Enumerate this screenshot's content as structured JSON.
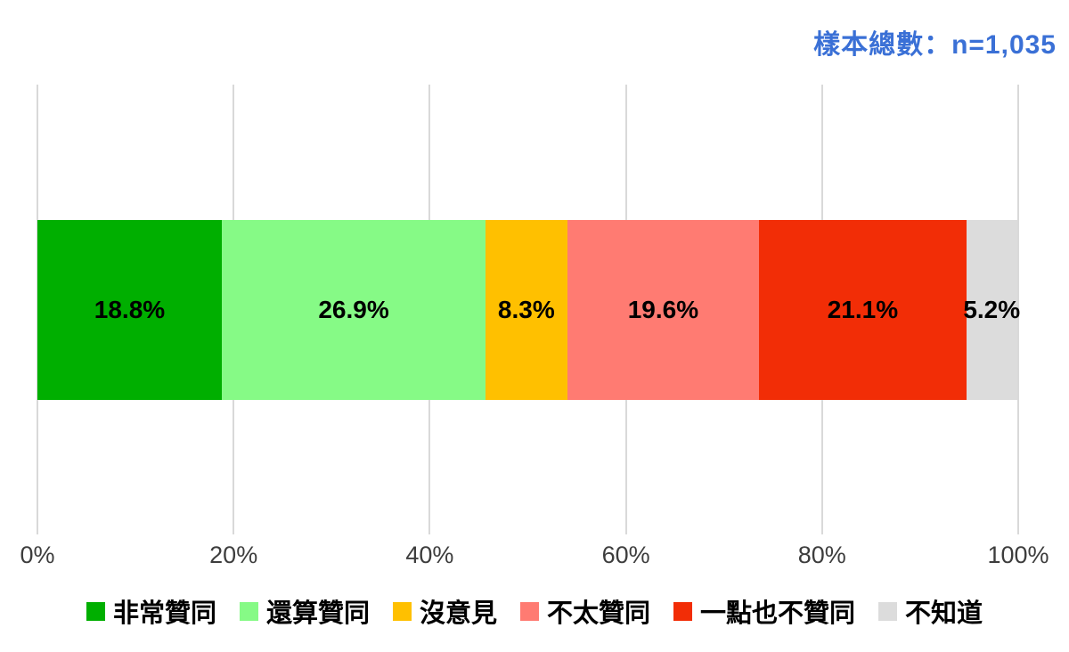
{
  "header": {
    "sample_total": "樣本總數：n=1,035",
    "color": "#3A70D6"
  },
  "chart_data": {
    "type": "bar",
    "variant": "horizontal-stacked-100pct",
    "title": "樣本總數：n=1,035",
    "categories": [
      "非常贊同",
      "還算贊同",
      "沒意見",
      "不太贊同",
      "一點也不贊同",
      "不知道"
    ],
    "values": [
      18.8,
      26.9,
      8.3,
      19.6,
      21.1,
      5.2
    ],
    "labels": [
      "18.8%",
      "26.9%",
      "8.3%",
      "19.6%",
      "21.1%",
      "5.2%"
    ],
    "colors": [
      "#00AF00",
      "#86FA86",
      "#FFC000",
      "#FF7B72",
      "#F22D06",
      "#DCDCDC"
    ],
    "xlabel": "",
    "ylabel": "",
    "x_axis": {
      "ticks": [
        "0%",
        "20%",
        "40%",
        "60%",
        "80%",
        "100%"
      ],
      "tick_values": [
        0,
        20,
        40,
        60,
        80,
        100
      ],
      "range": [
        0,
        100
      ]
    },
    "grid": "vertical",
    "grid_color": "#D9D9D9",
    "legend_position": "bottom"
  }
}
